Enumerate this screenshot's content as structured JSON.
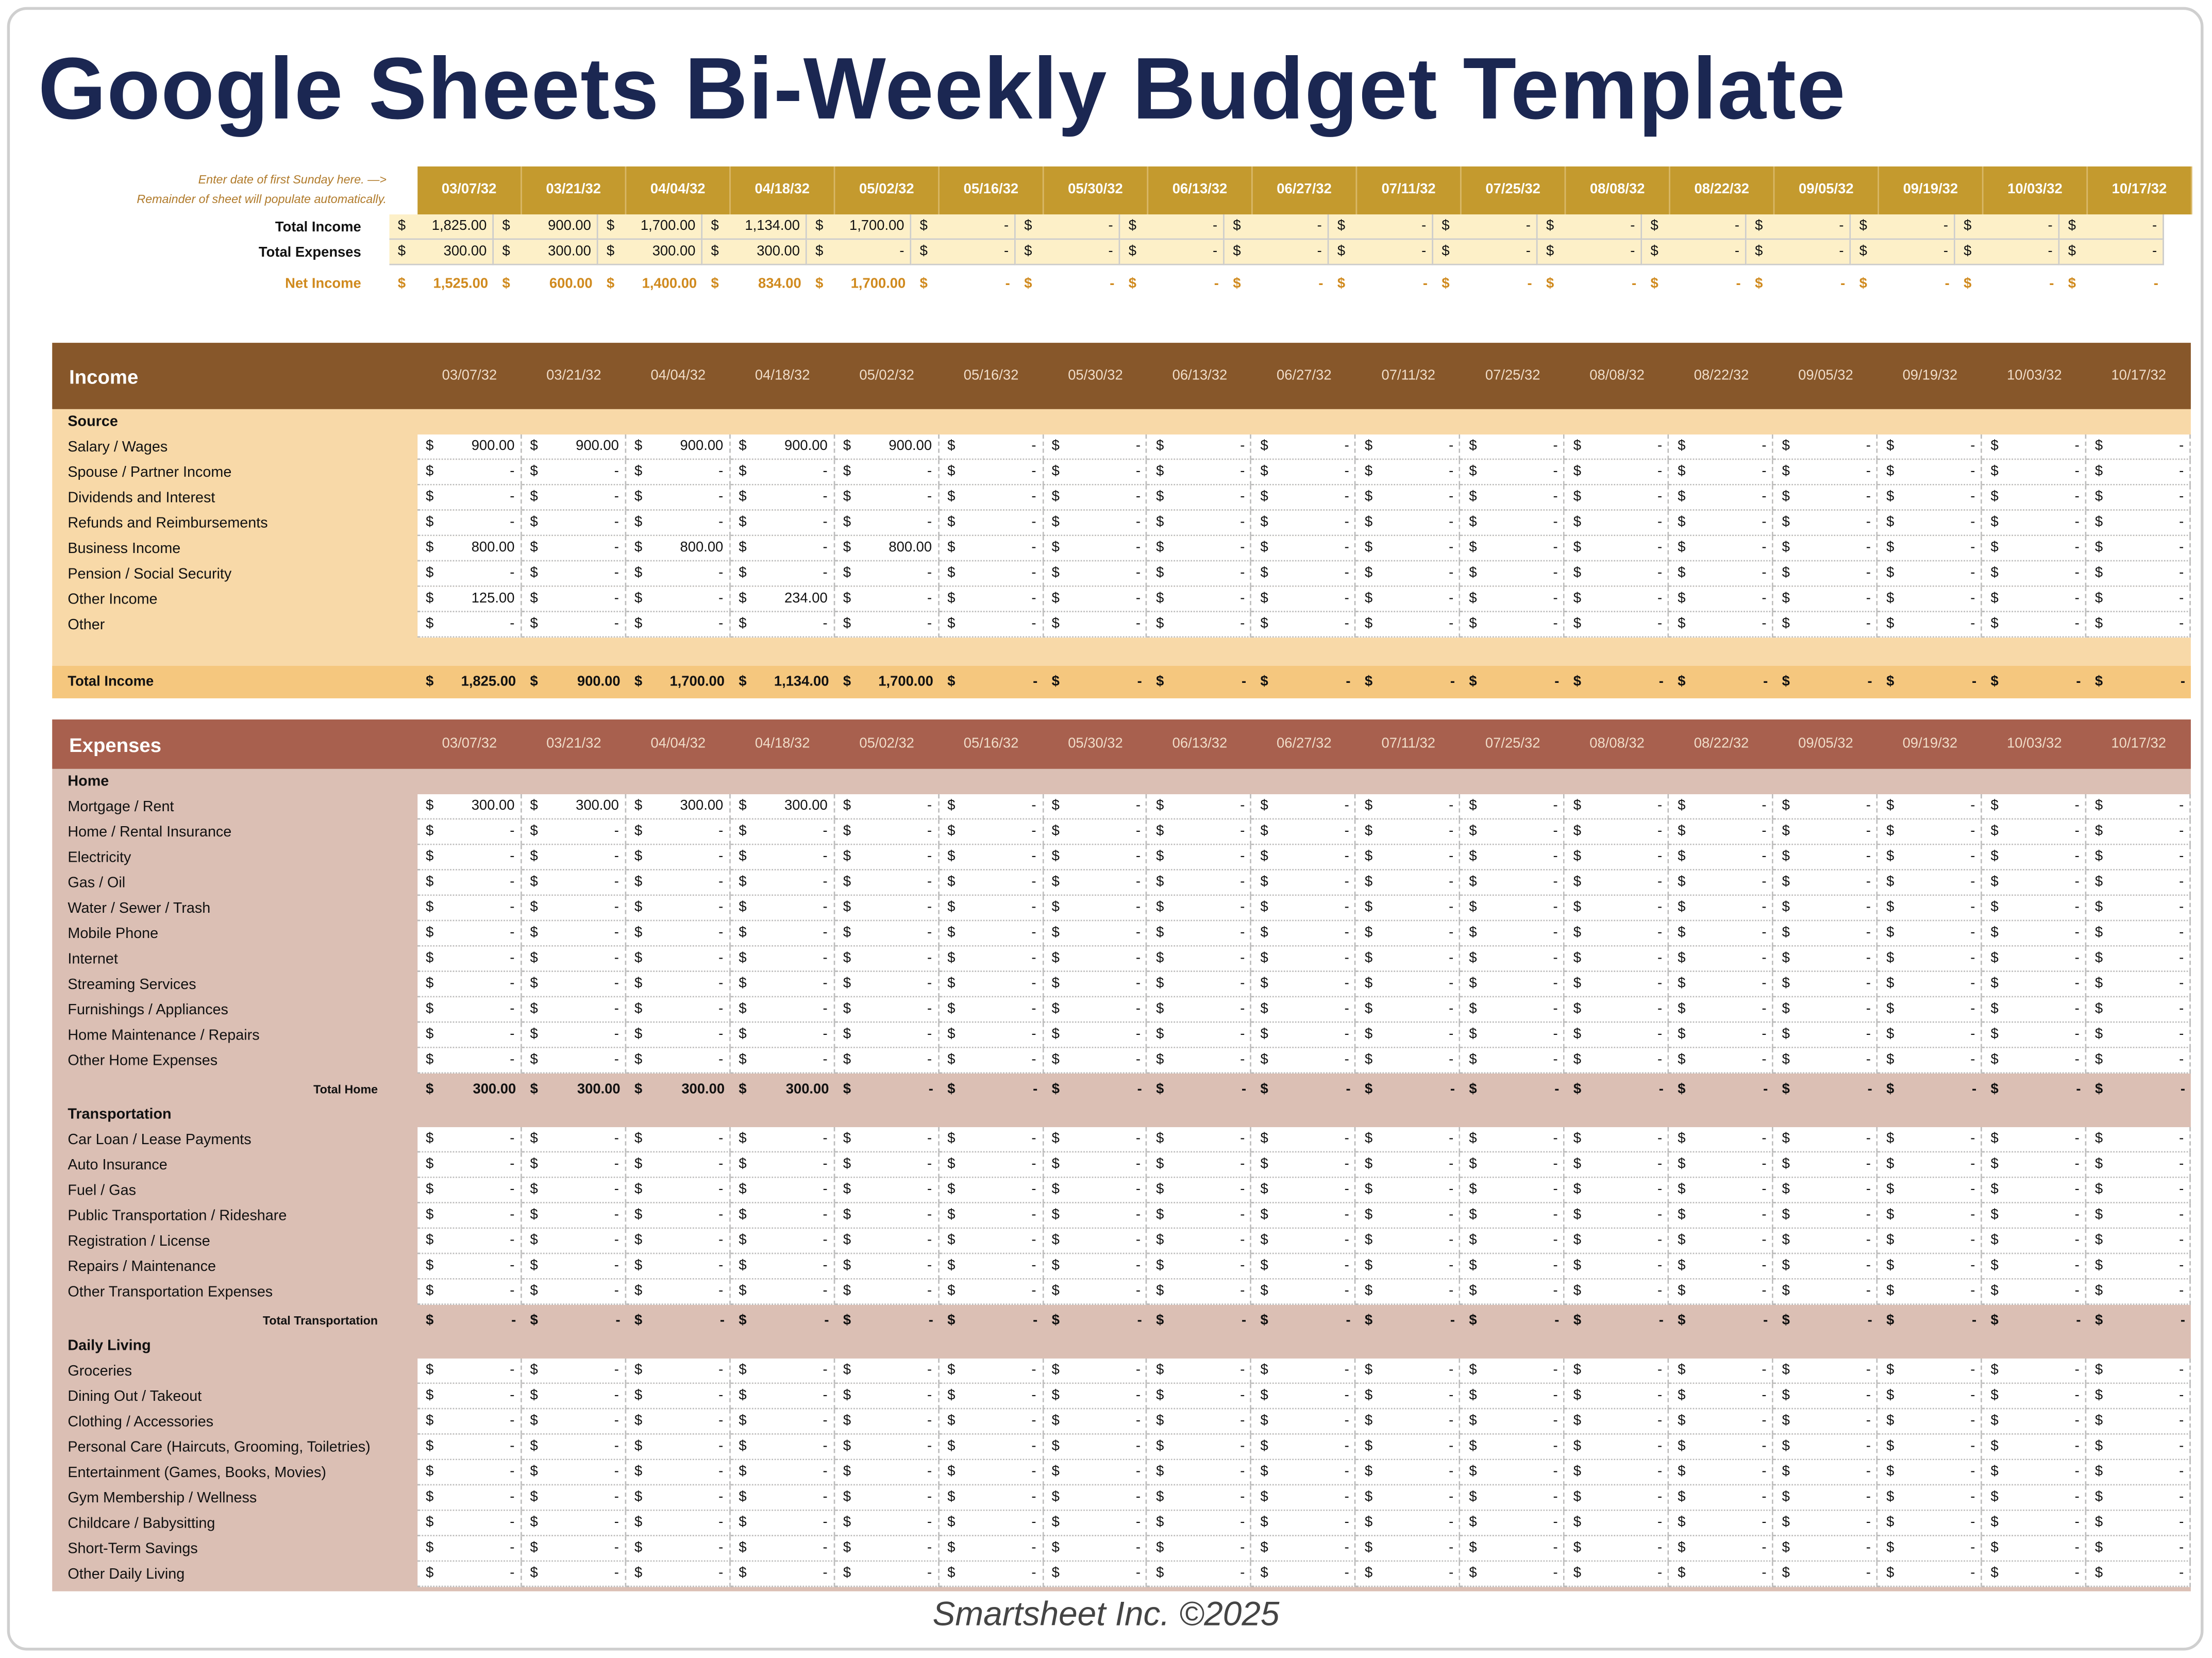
{
  "title": "Google Sheets Bi-Weekly Budget Template",
  "colors": {
    "title": "#1b2752",
    "header_gold": "#c49a2e",
    "summary_bg": "#fdf0c8",
    "net_income": "#d08a1e",
    "income_header": "#87572a",
    "income_body": "#f8d9a8",
    "income_total": "#f5c77e",
    "expenses_header": "#a8604e",
    "expenses_body": "#dbbfb4"
  },
  "summary": {
    "note_line1": "Enter date of first Sunday here. —>",
    "note_line2": "Remainder of sheet will populate automatically.",
    "dates": [
      "03/07/32",
      "03/21/32",
      "04/04/32",
      "04/18/32",
      "05/02/32",
      "05/16/32",
      "05/30/32",
      "06/13/32",
      "06/27/32",
      "07/11/32",
      "07/25/32",
      "08/08/32",
      "08/22/32",
      "09/05/32",
      "09/19/32",
      "10/03/32",
      "10/17/32"
    ],
    "rows": [
      {
        "label": "Total Income",
        "values": [
          "1,825.00",
          "900.00",
          "1,700.00",
          "1,134.00",
          "1,700.00",
          "-",
          "-",
          "-",
          "-",
          "-",
          "-",
          "-",
          "-",
          "-",
          "-",
          "-",
          "-"
        ]
      },
      {
        "label": "Total Expenses",
        "values": [
          "300.00",
          "300.00",
          "300.00",
          "300.00",
          "-",
          "-",
          "-",
          "-",
          "-",
          "-",
          "-",
          "-",
          "-",
          "-",
          "-",
          "-",
          "-"
        ]
      }
    ],
    "net": {
      "label": "Net Income",
      "values": [
        "1,525.00",
        "600.00",
        "1,400.00",
        "834.00",
        "1,700.00",
        "-",
        "-",
        "-",
        "-",
        "-",
        "-",
        "-",
        "-",
        "-",
        "-",
        "-",
        "-"
      ]
    }
  },
  "currency": "$",
  "income": {
    "title": "Income",
    "group": "Source",
    "rows": [
      {
        "label": "Salary / Wages",
        "values": [
          "900.00",
          "900.00",
          "900.00",
          "900.00",
          "900.00",
          "-",
          "-",
          "-",
          "-",
          "-",
          "-",
          "-",
          "-",
          "-",
          "-",
          "-",
          "-"
        ]
      },
      {
        "label": "Spouse / Partner Income",
        "values": [
          "-",
          "-",
          "-",
          "-",
          "-",
          "-",
          "-",
          "-",
          "-",
          "-",
          "-",
          "-",
          "-",
          "-",
          "-",
          "-",
          "-"
        ]
      },
      {
        "label": "Dividends and Interest",
        "values": [
          "-",
          "-",
          "-",
          "-",
          "-",
          "-",
          "-",
          "-",
          "-",
          "-",
          "-",
          "-",
          "-",
          "-",
          "-",
          "-",
          "-"
        ]
      },
      {
        "label": "Refunds and Reimbursements",
        "values": [
          "-",
          "-",
          "-",
          "-",
          "-",
          "-",
          "-",
          "-",
          "-",
          "-",
          "-",
          "-",
          "-",
          "-",
          "-",
          "-",
          "-"
        ]
      },
      {
        "label": "Business Income",
        "values": [
          "800.00",
          "-",
          "800.00",
          "-",
          "800.00",
          "-",
          "-",
          "-",
          "-",
          "-",
          "-",
          "-",
          "-",
          "-",
          "-",
          "-",
          "-"
        ]
      },
      {
        "label": "Pension / Social Security",
        "values": [
          "-",
          "-",
          "-",
          "-",
          "-",
          "-",
          "-",
          "-",
          "-",
          "-",
          "-",
          "-",
          "-",
          "-",
          "-",
          "-",
          "-"
        ]
      },
      {
        "label": "Other Income",
        "values": [
          "125.00",
          "-",
          "-",
          "234.00",
          "-",
          "-",
          "-",
          "-",
          "-",
          "-",
          "-",
          "-",
          "-",
          "-",
          "-",
          "-",
          "-"
        ]
      },
      {
        "label": "Other",
        "values": [
          "-",
          "-",
          "-",
          "-",
          "-",
          "-",
          "-",
          "-",
          "-",
          "-",
          "-",
          "-",
          "-",
          "-",
          "-",
          "-",
          "-"
        ]
      }
    ],
    "total": {
      "label": "Total Income",
      "values": [
        "1,825.00",
        "900.00",
        "1,700.00",
        "1,134.00",
        "1,700.00",
        "-",
        "-",
        "-",
        "-",
        "-",
        "-",
        "-",
        "-",
        "-",
        "-",
        "-",
        "-"
      ]
    }
  },
  "expenses": {
    "title": "Expenses",
    "groups": [
      {
        "name": "Home",
        "rows": [
          {
            "label": "Mortgage / Rent",
            "values": [
              "300.00",
              "300.00",
              "300.00",
              "300.00",
              "-",
              "-",
              "-",
              "-",
              "-",
              "-",
              "-",
              "-",
              "-",
              "-",
              "-",
              "-",
              "-"
            ]
          },
          {
            "label": "Home / Rental Insurance",
            "values": [
              "-",
              "-",
              "-",
              "-",
              "-",
              "-",
              "-",
              "-",
              "-",
              "-",
              "-",
              "-",
              "-",
              "-",
              "-",
              "-",
              "-"
            ]
          },
          {
            "label": "Electricity",
            "values": [
              "-",
              "-",
              "-",
              "-",
              "-",
              "-",
              "-",
              "-",
              "-",
              "-",
              "-",
              "-",
              "-",
              "-",
              "-",
              "-",
              "-"
            ]
          },
          {
            "label": "Gas / Oil",
            "values": [
              "-",
              "-",
              "-",
              "-",
              "-",
              "-",
              "-",
              "-",
              "-",
              "-",
              "-",
              "-",
              "-",
              "-",
              "-",
              "-",
              "-"
            ]
          },
          {
            "label": "Water / Sewer / Trash",
            "values": [
              "-",
              "-",
              "-",
              "-",
              "-",
              "-",
              "-",
              "-",
              "-",
              "-",
              "-",
              "-",
              "-",
              "-",
              "-",
              "-",
              "-"
            ]
          },
          {
            "label": "Mobile Phone",
            "values": [
              "-",
              "-",
              "-",
              "-",
              "-",
              "-",
              "-",
              "-",
              "-",
              "-",
              "-",
              "-",
              "-",
              "-",
              "-",
              "-",
              "-"
            ]
          },
          {
            "label": "Internet",
            "values": [
              "-",
              "-",
              "-",
              "-",
              "-",
              "-",
              "-",
              "-",
              "-",
              "-",
              "-",
              "-",
              "-",
              "-",
              "-",
              "-",
              "-"
            ]
          },
          {
            "label": "Streaming Services",
            "values": [
              "-",
              "-",
              "-",
              "-",
              "-",
              "-",
              "-",
              "-",
              "-",
              "-",
              "-",
              "-",
              "-",
              "-",
              "-",
              "-",
              "-"
            ]
          },
          {
            "label": "Furnishings / Appliances",
            "values": [
              "-",
              "-",
              "-",
              "-",
              "-",
              "-",
              "-",
              "-",
              "-",
              "-",
              "-",
              "-",
              "-",
              "-",
              "-",
              "-",
              "-"
            ]
          },
          {
            "label": "Home Maintenance / Repairs",
            "values": [
              "-",
              "-",
              "-",
              "-",
              "-",
              "-",
              "-",
              "-",
              "-",
              "-",
              "-",
              "-",
              "-",
              "-",
              "-",
              "-",
              "-"
            ]
          },
          {
            "label": "Other Home Expenses",
            "values": [
              "-",
              "-",
              "-",
              "-",
              "-",
              "-",
              "-",
              "-",
              "-",
              "-",
              "-",
              "-",
              "-",
              "-",
              "-",
              "-",
              "-"
            ]
          }
        ],
        "total": {
          "label": "Total Home",
          "values": [
            "300.00",
            "300.00",
            "300.00",
            "300.00",
            "-",
            "-",
            "-",
            "-",
            "-",
            "-",
            "-",
            "-",
            "-",
            "-",
            "-",
            "-",
            "-"
          ]
        }
      },
      {
        "name": "Transportation",
        "rows": [
          {
            "label": "Car Loan / Lease Payments",
            "values": [
              "-",
              "-",
              "-",
              "-",
              "-",
              "-",
              "-",
              "-",
              "-",
              "-",
              "-",
              "-",
              "-",
              "-",
              "-",
              "-",
              "-"
            ]
          },
          {
            "label": "Auto Insurance",
            "values": [
              "-",
              "-",
              "-",
              "-",
              "-",
              "-",
              "-",
              "-",
              "-",
              "-",
              "-",
              "-",
              "-",
              "-",
              "-",
              "-",
              "-"
            ]
          },
          {
            "label": "Fuel / Gas",
            "values": [
              "-",
              "-",
              "-",
              "-",
              "-",
              "-",
              "-",
              "-",
              "-",
              "-",
              "-",
              "-",
              "-",
              "-",
              "-",
              "-",
              "-"
            ]
          },
          {
            "label": "Public Transportation / Rideshare",
            "values": [
              "-",
              "-",
              "-",
              "-",
              "-",
              "-",
              "-",
              "-",
              "-",
              "-",
              "-",
              "-",
              "-",
              "-",
              "-",
              "-",
              "-"
            ]
          },
          {
            "label": "Registration / License",
            "values": [
              "-",
              "-",
              "-",
              "-",
              "-",
              "-",
              "-",
              "-",
              "-",
              "-",
              "-",
              "-",
              "-",
              "-",
              "-",
              "-",
              "-"
            ]
          },
          {
            "label": "Repairs / Maintenance",
            "values": [
              "-",
              "-",
              "-",
              "-",
              "-",
              "-",
              "-",
              "-",
              "-",
              "-",
              "-",
              "-",
              "-",
              "-",
              "-",
              "-",
              "-"
            ]
          },
          {
            "label": "Other Transportation Expenses",
            "values": [
              "-",
              "-",
              "-",
              "-",
              "-",
              "-",
              "-",
              "-",
              "-",
              "-",
              "-",
              "-",
              "-",
              "-",
              "-",
              "-",
              "-"
            ]
          }
        ],
        "total": {
          "label": "Total Transportation",
          "values": [
            "-",
            "-",
            "-",
            "-",
            "-",
            "-",
            "-",
            "-",
            "-",
            "-",
            "-",
            "-",
            "-",
            "-",
            "-",
            "-",
            "-"
          ]
        }
      },
      {
        "name": "Daily Living",
        "rows": [
          {
            "label": "Groceries",
            "values": [
              "-",
              "-",
              "-",
              "-",
              "-",
              "-",
              "-",
              "-",
              "-",
              "-",
              "-",
              "-",
              "-",
              "-",
              "-",
              "-",
              "-"
            ]
          },
          {
            "label": "Dining Out / Takeout",
            "values": [
              "-",
              "-",
              "-",
              "-",
              "-",
              "-",
              "-",
              "-",
              "-",
              "-",
              "-",
              "-",
              "-",
              "-",
              "-",
              "-",
              "-"
            ]
          },
          {
            "label": "Clothing / Accessories",
            "values": [
              "-",
              "-",
              "-",
              "-",
              "-",
              "-",
              "-",
              "-",
              "-",
              "-",
              "-",
              "-",
              "-",
              "-",
              "-",
              "-",
              "-"
            ]
          },
          {
            "label": "Personal Care (Haircuts, Grooming, Toiletries)",
            "values": [
              "-",
              "-",
              "-",
              "-",
              "-",
              "-",
              "-",
              "-",
              "-",
              "-",
              "-",
              "-",
              "-",
              "-",
              "-",
              "-",
              "-"
            ]
          },
          {
            "label": "Entertainment (Games, Books, Movies)",
            "values": [
              "-",
              "-",
              "-",
              "-",
              "-",
              "-",
              "-",
              "-",
              "-",
              "-",
              "-",
              "-",
              "-",
              "-",
              "-",
              "-",
              "-"
            ]
          },
          {
            "label": "Gym Membership / Wellness",
            "values": [
              "-",
              "-",
              "-",
              "-",
              "-",
              "-",
              "-",
              "-",
              "-",
              "-",
              "-",
              "-",
              "-",
              "-",
              "-",
              "-",
              "-"
            ]
          },
          {
            "label": "Childcare / Babysitting",
            "values": [
              "-",
              "-",
              "-",
              "-",
              "-",
              "-",
              "-",
              "-",
              "-",
              "-",
              "-",
              "-",
              "-",
              "-",
              "-",
              "-",
              "-"
            ]
          },
          {
            "label": "Short-Term Savings",
            "values": [
              "-",
              "-",
              "-",
              "-",
              "-",
              "-",
              "-",
              "-",
              "-",
              "-",
              "-",
              "-",
              "-",
              "-",
              "-",
              "-",
              "-"
            ]
          },
          {
            "label": "Other Daily Living",
            "values": [
              "-",
              "-",
              "-",
              "-",
              "-",
              "-",
              "-",
              "-",
              "-",
              "-",
              "-",
              "-",
              "-",
              "-",
              "-",
              "-",
              "-"
            ]
          }
        ]
      }
    ]
  },
  "footer": "Smartsheet Inc. ©2025"
}
